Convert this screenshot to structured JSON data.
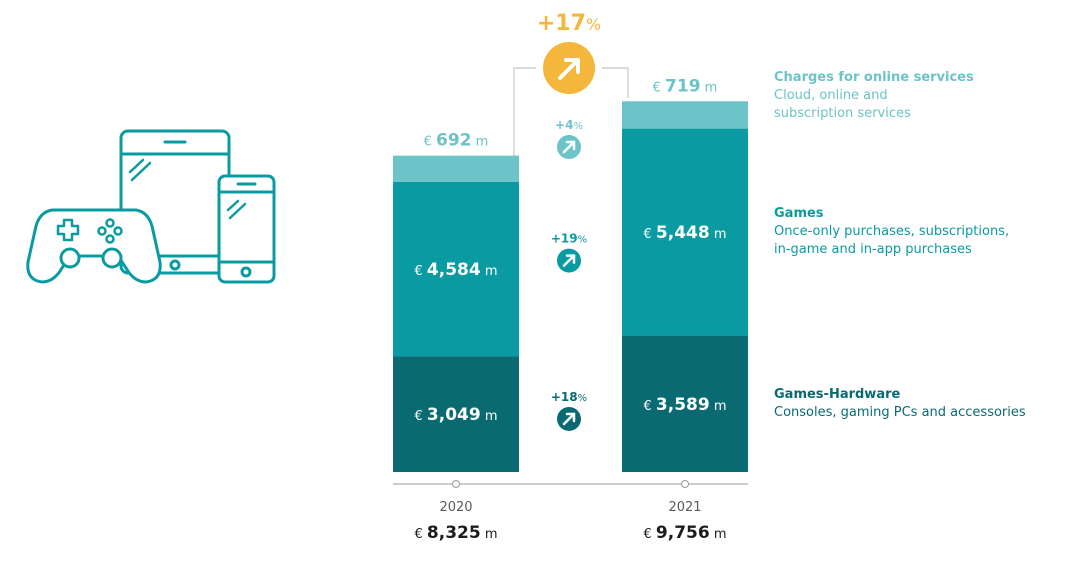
{
  "colors": {
    "online": "#6cc3c8",
    "games": "#0a9ba2",
    "hardware": "#0a6a72",
    "accent": "#f5b63c",
    "text": "#1c1c1c",
    "muted": "#5a5a5a"
  },
  "icon": {
    "name": "gaming-devices-icon"
  },
  "total_growth": {
    "value": "+17",
    "unit": "%",
    "icon": "arrow-up-right-icon"
  },
  "chart_data": {
    "type": "bar",
    "stacked": true,
    "categories": [
      "2020",
      "2021"
    ],
    "series": [
      {
        "name": "Games-Hardware",
        "values": [
          3049,
          3589
        ],
        "growth": "+18",
        "color": "#0a6a72"
      },
      {
        "name": "Games",
        "values": [
          4584,
          5448
        ],
        "growth": "+19",
        "color": "#0a9ba2"
      },
      {
        "name": "Charges for online services",
        "values": [
          692,
          719
        ],
        "growth": "+4",
        "color": "#6cc3c8"
      }
    ],
    "totals": [
      8325,
      9756
    ],
    "currency": "€",
    "unit": "m",
    "growth_unit": "%"
  },
  "legend": [
    {
      "title": "Charges for online services",
      "desc": [
        "Cloud, online and",
        "subscription services"
      ]
    },
    {
      "title": "Games",
      "desc": [
        "Once-only purchases, subscriptions,",
        "in-game and in-app purchases"
      ]
    },
    {
      "title": "Games-Hardware",
      "desc": [
        "Consoles, gaming PCs and accessories"
      ]
    }
  ]
}
